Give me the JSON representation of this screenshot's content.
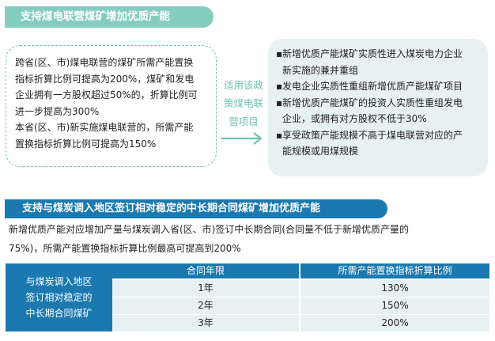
{
  "section1": {
    "banner": "支持煤电联营煤矿增加优质产能",
    "left_lines": [
      "跨省(区、市)煤电联营的煤矿所需产能置换",
      "指标折算比例可提高为200%，煤矿和发电",
      "企业拥有一方股权超过50%的，折算比例可",
      "进一步提高为300%",
      "本省(区、市)新实施煤电联营的，所需产能",
      "置换指标折算比例可提高为150%"
    ],
    "middle_label": "适用该政\n策煤电联\n营项目",
    "right_items": [
      {
        "bullet": "▪",
        "lines": [
          "新增优质产能煤矿实质性进入煤炭电力企业",
          "新实施的兼并重组"
        ]
      },
      {
        "bullet": "▪",
        "lines": [
          "发电企业实质性重组新增优质产能煤矿项目"
        ]
      },
      {
        "bullet": "▪",
        "lines": [
          "新增优质产能煤矿的投资人实质性重组发电",
          "企业，或拥有对方股权不低于30%"
        ]
      },
      {
        "bullet": "▪",
        "lines": [
          "享受政策产能规模不高于煤电联营对应的产",
          "能规模或用煤规模"
        ]
      }
    ]
  },
  "section2": {
    "banner": "支持与煤炭调入地区签订相对稳定的中长期合同煤矿增加优质产能",
    "paragraph_lines": [
      "新增优质产能对应增加产量与煤炭调入省(区、市)签订中长期合同(合同量不低于新增优质产量的",
      "75%)，所需产能置换指标折算比例最高可提高到200%"
    ],
    "table": {
      "row_header": "与煤炭调入地区\n签订相对稳定的\n中长期合同煤矿",
      "columns": [
        "合同年限",
        "所需产能置换指标折算比例"
      ],
      "rows": [
        [
          "1年",
          "130%"
        ],
        [
          "2年",
          "150%"
        ],
        [
          "3年",
          "200%"
        ]
      ]
    }
  },
  "colors": {
    "teal": "#84cdbe",
    "blue": "#1c79b0",
    "light": "#e6f2f1"
  },
  "icons": {
    "arrow": "right-arrow-icon"
  }
}
